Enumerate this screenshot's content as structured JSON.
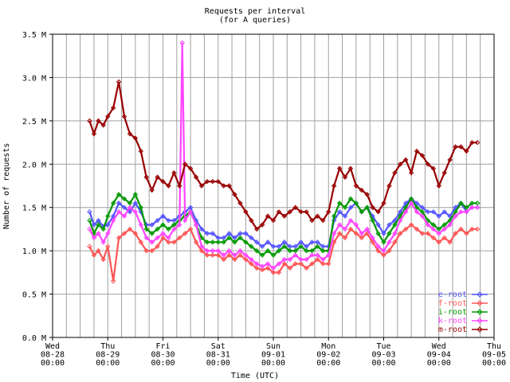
{
  "chart_data": {
    "type": "line",
    "title": "Requests per interval",
    "subtitle": "(for A queries)",
    "xlabel": "Time (UTC)",
    "ylabel": "Number of requests",
    "ylim": [
      0,
      3.5
    ],
    "ytick_values": [
      0.0,
      0.5,
      1.0,
      1.5,
      2.0,
      2.5,
      3.0,
      3.5
    ],
    "ytick_labels": [
      "0.0 M",
      "0.5 M",
      "1.0 M",
      "1.5 M",
      "2.0 M",
      "2.5 M",
      "3.0 M",
      "3.5 M"
    ],
    "xlim_days": [
      0,
      8
    ],
    "xticks": [
      {
        "day": 0,
        "line1": "Wed",
        "line2": "08-28",
        "line3": "00:00"
      },
      {
        "day": 1,
        "line1": "Thu",
        "line2": "08-29",
        "line3": "00:00"
      },
      {
        "day": 2,
        "line1": "Fri",
        "line2": "08-30",
        "line3": "00:00"
      },
      {
        "day": 3,
        "line1": "Sat",
        "line2": "08-31",
        "line3": "00:00"
      },
      {
        "day": 4,
        "line1": "Sun",
        "line2": "09-01",
        "line3": "00:00"
      },
      {
        "day": 5,
        "line1": "Mon",
        "line2": "09-02",
        "line3": "00:00"
      },
      {
        "day": 6,
        "line1": "Tue",
        "line2": "09-03",
        "line3": "00:00"
      },
      {
        "day": 7,
        "line1": "Wed",
        "line2": "09-04",
        "line3": "00:00"
      },
      {
        "day": 8,
        "line1": "Thu",
        "line2": "09-05",
        "line3": "00:00"
      }
    ],
    "grid": true,
    "minor_grid_per_day": 4,
    "legend_position": "bottom-right",
    "series": [
      {
        "name": "e-root",
        "color": "#5555ff",
        "x": [
          0.67,
          0.75,
          0.83,
          0.92,
          1.0,
          1.1,
          1.2,
          1.3,
          1.4,
          1.5,
          1.6,
          1.7,
          1.8,
          1.9,
          2.0,
          2.1,
          2.2,
          2.3,
          2.4,
          2.5,
          2.6,
          2.7,
          2.8,
          2.9,
          3.0,
          3.1,
          3.2,
          3.3,
          3.4,
          3.5,
          3.6,
          3.7,
          3.8,
          3.9,
          4.0,
          4.1,
          4.2,
          4.3,
          4.4,
          4.5,
          4.6,
          4.7,
          4.8,
          4.9,
          5.0,
          5.1,
          5.2,
          5.3,
          5.4,
          5.5,
          5.6,
          5.7,
          5.8,
          5.9,
          6.0,
          6.1,
          6.2,
          6.3,
          6.4,
          6.5,
          6.6,
          6.7,
          6.8,
          6.9,
          7.0,
          7.1,
          7.2,
          7.3,
          7.4,
          7.5,
          7.6,
          7.7
        ],
        "y": [
          1.45,
          1.3,
          1.35,
          1.28,
          1.3,
          1.4,
          1.55,
          1.5,
          1.45,
          1.55,
          1.45,
          1.3,
          1.3,
          1.35,
          1.4,
          1.35,
          1.35,
          1.4,
          1.45,
          1.5,
          1.35,
          1.25,
          1.2,
          1.2,
          1.15,
          1.15,
          1.2,
          1.15,
          1.2,
          1.2,
          1.15,
          1.1,
          1.05,
          1.1,
          1.05,
          1.05,
          1.1,
          1.05,
          1.05,
          1.1,
          1.05,
          1.1,
          1.1,
          1.05,
          1.05,
          1.35,
          1.45,
          1.4,
          1.5,
          1.55,
          1.45,
          1.5,
          1.4,
          1.3,
          1.2,
          1.3,
          1.35,
          1.45,
          1.55,
          1.6,
          1.55,
          1.5,
          1.45,
          1.45,
          1.4,
          1.45,
          1.4,
          1.5,
          1.55,
          1.45,
          1.5,
          1.5
        ]
      },
      {
        "name": "f-root",
        "color": "#ff5555",
        "x": [
          0.67,
          0.75,
          0.83,
          0.92,
          1.0,
          1.1,
          1.2,
          1.3,
          1.4,
          1.5,
          1.6,
          1.7,
          1.8,
          1.9,
          2.0,
          2.1,
          2.2,
          2.3,
          2.4,
          2.5,
          2.6,
          2.7,
          2.8,
          2.9,
          3.0,
          3.1,
          3.2,
          3.3,
          3.4,
          3.5,
          3.6,
          3.7,
          3.8,
          3.9,
          4.0,
          4.1,
          4.2,
          4.3,
          4.4,
          4.5,
          4.6,
          4.7,
          4.8,
          4.9,
          5.0,
          5.1,
          5.2,
          5.3,
          5.4,
          5.5,
          5.6,
          5.7,
          5.8,
          5.9,
          6.0,
          6.1,
          6.2,
          6.3,
          6.4,
          6.5,
          6.6,
          6.7,
          6.8,
          6.9,
          7.0,
          7.1,
          7.2,
          7.3,
          7.4,
          7.5,
          7.6,
          7.7
        ],
        "y": [
          1.05,
          0.95,
          1.0,
          0.9,
          1.05,
          0.65,
          1.15,
          1.2,
          1.25,
          1.2,
          1.1,
          1.0,
          1.0,
          1.05,
          1.15,
          1.1,
          1.1,
          1.15,
          1.2,
          1.25,
          1.1,
          1.0,
          0.95,
          0.95,
          0.95,
          0.9,
          0.95,
          0.9,
          0.95,
          0.9,
          0.85,
          0.8,
          0.78,
          0.8,
          0.75,
          0.75,
          0.85,
          0.8,
          0.85,
          0.85,
          0.8,
          0.85,
          0.9,
          0.85,
          0.85,
          1.1,
          1.2,
          1.15,
          1.25,
          1.2,
          1.15,
          1.2,
          1.1,
          1.0,
          0.95,
          1.0,
          1.1,
          1.2,
          1.25,
          1.3,
          1.25,
          1.2,
          1.2,
          1.15,
          1.1,
          1.15,
          1.1,
          1.2,
          1.25,
          1.2,
          1.25,
          1.25
        ]
      },
      {
        "name": "i-root",
        "color": "#009900",
        "x": [
          0.67,
          0.75,
          0.83,
          0.92,
          1.0,
          1.1,
          1.2,
          1.3,
          1.4,
          1.5,
          1.6,
          1.7,
          1.8,
          1.9,
          2.0,
          2.1,
          2.2,
          2.3,
          2.4,
          2.5,
          2.6,
          2.7,
          2.8,
          2.9,
          3.0,
          3.1,
          3.2,
          3.3,
          3.4,
          3.5,
          3.6,
          3.7,
          3.8,
          3.9,
          4.0,
          4.1,
          4.2,
          4.3,
          4.4,
          4.5,
          4.6,
          4.7,
          4.8,
          4.9,
          5.0,
          5.1,
          5.2,
          5.3,
          5.4,
          5.5,
          5.6,
          5.7,
          5.8,
          5.9,
          6.0,
          6.1,
          6.2,
          6.3,
          6.4,
          6.5,
          6.6,
          6.7,
          6.8,
          6.9,
          7.0,
          7.1,
          7.2,
          7.3,
          7.4,
          7.5,
          7.6,
          7.7
        ],
        "y": [
          1.35,
          1.2,
          1.3,
          1.25,
          1.4,
          1.55,
          1.65,
          1.6,
          1.55,
          1.65,
          1.5,
          1.25,
          1.2,
          1.25,
          1.3,
          1.25,
          1.3,
          1.35,
          1.4,
          1.45,
          1.3,
          1.15,
          1.1,
          1.1,
          1.1,
          1.1,
          1.15,
          1.1,
          1.15,
          1.1,
          1.05,
          1.0,
          0.95,
          1.0,
          0.95,
          1.0,
          1.05,
          1.0,
          1.0,
          1.05,
          1.0,
          1.0,
          1.05,
          1.0,
          1.0,
          1.4,
          1.55,
          1.5,
          1.6,
          1.55,
          1.45,
          1.5,
          1.35,
          1.2,
          1.1,
          1.2,
          1.3,
          1.4,
          1.5,
          1.6,
          1.5,
          1.45,
          1.35,
          1.3,
          1.25,
          1.3,
          1.35,
          1.45,
          1.55,
          1.5,
          1.55,
          1.55
        ]
      },
      {
        "name": "k-root",
        "color": "#ff44ff",
        "x": [
          0.67,
          0.75,
          0.83,
          0.92,
          1.0,
          1.1,
          1.2,
          1.3,
          1.4,
          1.5,
          1.6,
          1.7,
          1.8,
          1.9,
          2.0,
          2.1,
          2.2,
          2.3,
          2.35,
          2.4,
          2.5,
          2.6,
          2.7,
          2.8,
          2.9,
          3.0,
          3.1,
          3.2,
          3.3,
          3.4,
          3.5,
          3.6,
          3.7,
          3.8,
          3.9,
          4.0,
          4.1,
          4.2,
          4.3,
          4.4,
          4.5,
          4.6,
          4.7,
          4.8,
          4.9,
          5.0,
          5.1,
          5.2,
          5.3,
          5.4,
          5.5,
          5.6,
          5.7,
          5.8,
          5.9,
          6.0,
          6.1,
          6.2,
          6.3,
          6.4,
          6.5,
          6.6,
          6.7,
          6.8,
          6.9,
          7.0,
          7.1,
          7.2,
          7.3,
          7.4,
          7.5,
          7.6,
          7.7
        ],
        "y": [
          1.25,
          1.15,
          1.2,
          1.1,
          1.2,
          1.35,
          1.45,
          1.4,
          1.5,
          1.45,
          1.3,
          1.15,
          1.1,
          1.15,
          1.2,
          1.15,
          1.25,
          1.3,
          3.4,
          1.35,
          1.45,
          1.3,
          1.05,
          1.0,
          1.0,
          1.0,
          0.95,
          1.0,
          0.95,
          1.0,
          0.95,
          0.9,
          0.85,
          0.82,
          0.85,
          0.8,
          0.85,
          0.9,
          0.9,
          0.95,
          0.9,
          0.9,
          0.95,
          0.95,
          0.9,
          0.95,
          1.2,
          1.3,
          1.25,
          1.35,
          1.3,
          1.2,
          1.25,
          1.15,
          1.05,
          1.0,
          1.1,
          1.2,
          1.35,
          1.45,
          1.55,
          1.45,
          1.4,
          1.3,
          1.25,
          1.2,
          1.25,
          1.3,
          1.4,
          1.45,
          1.45,
          1.5,
          1.5
        ]
      },
      {
        "name": "m-root",
        "color": "#990000",
        "x": [
          0.67,
          0.75,
          0.83,
          0.92,
          1.0,
          1.1,
          1.2,
          1.3,
          1.4,
          1.5,
          1.6,
          1.7,
          1.8,
          1.9,
          2.0,
          2.1,
          2.2,
          2.3,
          2.4,
          2.5,
          2.6,
          2.7,
          2.8,
          2.9,
          3.0,
          3.1,
          3.2,
          3.3,
          3.4,
          3.5,
          3.6,
          3.7,
          3.8,
          3.9,
          4.0,
          4.1,
          4.2,
          4.3,
          4.4,
          4.5,
          4.6,
          4.7,
          4.8,
          4.9,
          5.0,
          5.1,
          5.2,
          5.3,
          5.4,
          5.5,
          5.6,
          5.7,
          5.8,
          5.9,
          6.0,
          6.1,
          6.2,
          6.3,
          6.4,
          6.5,
          6.6,
          6.7,
          6.8,
          6.9,
          7.0,
          7.1,
          7.2,
          7.3,
          7.4,
          7.5,
          7.6,
          7.7
        ],
        "y": [
          2.5,
          2.35,
          2.5,
          2.45,
          2.55,
          2.65,
          2.95,
          2.55,
          2.35,
          2.3,
          2.15,
          1.85,
          1.7,
          1.85,
          1.8,
          1.75,
          1.9,
          1.75,
          2.0,
          1.95,
          1.85,
          1.75,
          1.8,
          1.8,
          1.8,
          1.75,
          1.75,
          1.65,
          1.55,
          1.45,
          1.35,
          1.25,
          1.3,
          1.4,
          1.35,
          1.45,
          1.4,
          1.45,
          1.5,
          1.45,
          1.45,
          1.35,
          1.4,
          1.35,
          1.45,
          1.75,
          1.95,
          1.85,
          1.95,
          1.75,
          1.7,
          1.65,
          1.5,
          1.45,
          1.55,
          1.75,
          1.9,
          2.0,
          2.05,
          1.9,
          2.15,
          2.1,
          2.0,
          1.95,
          1.75,
          1.9,
          2.05,
          2.2,
          2.2,
          2.15,
          2.25,
          2.25
        ]
      }
    ]
  }
}
